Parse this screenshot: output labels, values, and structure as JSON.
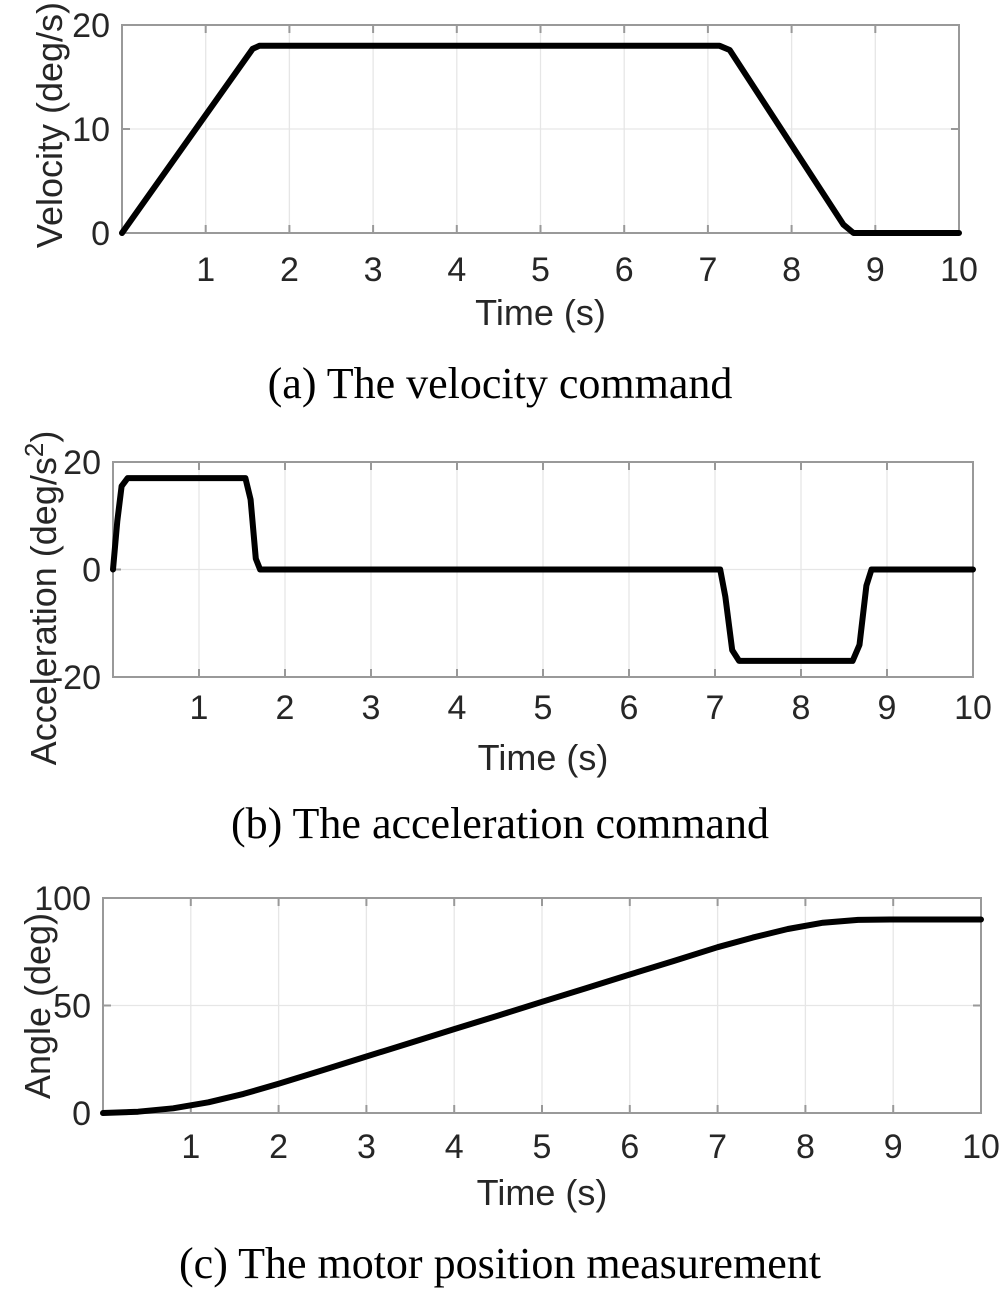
{
  "style": {
    "background": "#ffffff",
    "line_color": "#000000",
    "axis_color": "#999999",
    "grid_color": "#e6e6e6",
    "tick_text_color": "#262626",
    "caption_color": "#000000"
  },
  "chart_data": [
    {
      "id": "velocity",
      "type": "line",
      "title": "",
      "xlabel": "Time (s)",
      "ylabel": "Velocity (deg/s)",
      "caption": "(a) The velocity command",
      "xlim": [
        0,
        10
      ],
      "ylim": [
        0,
        20
      ],
      "xticks": [
        1,
        2,
        3,
        4,
        5,
        6,
        7,
        8,
        9,
        10
      ],
      "yticks": [
        0,
        10,
        20
      ],
      "grid": true,
      "legend": null,
      "series": [
        {
          "name": "velocity command",
          "x": [
            0,
            1.56,
            1.64,
            7.14,
            7.26,
            8.62,
            8.74,
            10
          ],
          "y": [
            0,
            17.7,
            18,
            18,
            17.6,
            0.8,
            0,
            0
          ]
        }
      ]
    },
    {
      "id": "acceleration",
      "type": "line",
      "title": "",
      "xlabel": "Time (s)",
      "ylabel": "Acceleration (deg/s²)",
      "ylabel_main": "Acceleration (deg/s",
      "ylabel_sup": "2",
      "ylabel_close": ")",
      "caption": "(b) The acceleration command",
      "xlim": [
        0,
        10
      ],
      "ylim": [
        -20,
        20
      ],
      "xticks": [
        1,
        2,
        3,
        4,
        5,
        6,
        7,
        8,
        9,
        10
      ],
      "yticks": [
        -20,
        0,
        20
      ],
      "grid": true,
      "legend": null,
      "series": [
        {
          "name": "acceleration command",
          "x": [
            0,
            0.05,
            0.1,
            0.17,
            1.54,
            1.6,
            1.66,
            1.71,
            7.06,
            7.12,
            7.2,
            7.28,
            8.6,
            8.68,
            8.76,
            8.82,
            10
          ],
          "y": [
            0,
            9,
            15.5,
            17,
            17,
            13,
            2,
            0,
            0,
            -5,
            -15,
            -17,
            -17,
            -14,
            -3,
            0,
            0
          ]
        }
      ]
    },
    {
      "id": "angle",
      "type": "line",
      "title": "",
      "xlabel": "Time (s)",
      "ylabel": "Angle (deg)",
      "caption": "(c) The motor position measurement",
      "xlim": [
        0,
        10
      ],
      "ylim": [
        0,
        100
      ],
      "xticks": [
        1,
        2,
        3,
        4,
        5,
        6,
        7,
        8,
        9,
        10
      ],
      "yticks": [
        0,
        50,
        100
      ],
      "grid": true,
      "legend": null,
      "series": [
        {
          "name": "motor position measurement",
          "x": [
            0,
            0.4,
            0.8,
            1.2,
            1.6,
            2.0,
            2.5,
            3.0,
            3.5,
            4.0,
            4.5,
            5.0,
            5.5,
            6.0,
            6.5,
            7.0,
            7.4,
            7.8,
            8.2,
            8.6,
            9.0,
            10
          ],
          "y": [
            0,
            0.6,
            2.2,
            5.0,
            8.9,
            13.6,
            19.9,
            26.3,
            32.6,
            39.0,
            45.3,
            51.7,
            58.0,
            64.4,
            70.7,
            77.1,
            81.6,
            85.6,
            88.5,
            89.8,
            90,
            90
          ]
        }
      ]
    }
  ]
}
